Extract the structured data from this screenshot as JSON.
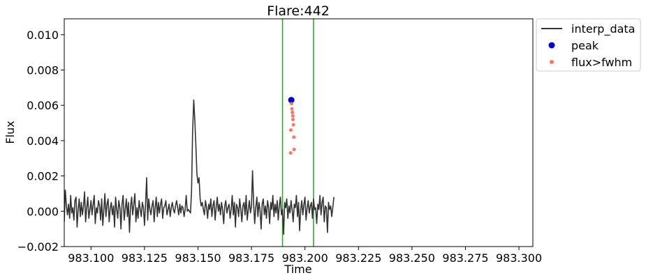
{
  "chart_data": {
    "type": "line",
    "title": "Flare:442",
    "xlabel": "Time",
    "ylabel": "Flux",
    "xlim": [
      983.0875,
      983.3065
    ],
    "ylim": [
      -0.002,
      0.0109
    ],
    "x_ticks": [
      983.1,
      983.125,
      983.15,
      983.175,
      983.2,
      983.225,
      983.25,
      983.275,
      983.3
    ],
    "x_tick_labels": [
      "983.100",
      "983.125",
      "983.150",
      "983.175",
      "983.200",
      "983.225",
      "983.250",
      "983.275",
      "983.300"
    ],
    "y_ticks": [
      -0.002,
      0.0,
      0.002,
      0.004,
      0.006,
      0.008,
      0.01
    ],
    "y_tick_labels": [
      "−0.002",
      "0.000",
      "0.002",
      "0.004",
      "0.006",
      "0.008",
      "0.010"
    ],
    "grid": false,
    "legend_position": "outside-top-right",
    "vlines": {
      "x": [
        983.1895,
        983.204
      ],
      "color": "#2ca02c"
    },
    "series": [
      {
        "name": "interp_data",
        "kind": "line",
        "color": "#333333",
        "x_start": 983.0875,
        "x_step": 0.0005,
        "values": [
          -0.0006,
          0.0012,
          0.0003,
          -0.0002,
          0.0004,
          -0.0004,
          0.0009,
          -0.0001,
          0.0002,
          -0.0005,
          0.0006,
          0.0008,
          -0.0009,
          0.0001,
          0.0007,
          -0.0003,
          0.0005,
          -0.0002,
          0.0003,
          0.0011,
          -0.0006,
          0.0002,
          0.0008,
          -0.0004,
          0.0001,
          0.0006,
          -0.0002,
          0.0004,
          0.0009,
          -0.0007,
          0.0002,
          -0.0001,
          0.0006,
          0.0003,
          -0.0005,
          0.0007,
          -0.0008,
          0.0001,
          0.001,
          -0.0003,
          0.0004,
          0.0007,
          -0.0006,
          0.0002,
          0.0005,
          -0.0002,
          0.0003,
          -0.0009,
          0.0008,
          0.0001,
          -0.0004,
          0.0006,
          0.0002,
          -0.001,
          0.0004,
          0.0009,
          -0.0005,
          0.0001,
          0.0007,
          -0.0003,
          0.0005,
          -0.0012,
          0.0003,
          0.0008,
          -0.0002,
          0.0004,
          0.001,
          -0.0006,
          0.0002,
          -0.0004,
          0.0006,
          0.0001,
          -0.0003,
          0.0005,
          0.0002,
          -0.0008,
          0.0004,
          0.0019,
          -0.0005,
          0.0007,
          0.0001,
          -0.0002,
          0.0003,
          0.0006,
          -0.0006,
          0.0002,
          0.0008,
          -0.0003,
          0.0005,
          -0.0001,
          0.0004,
          0.0007,
          -0.0004,
          0.0002,
          0.0003,
          0.0006,
          -0.0002,
          0.0001,
          0.0004,
          -0.0003,
          0.0002,
          0.0005,
          0.0001,
          -0.0001,
          0.0003,
          0.0006,
          0.0002,
          -0.0002,
          0.0004,
          -0.0001,
          0.0003,
          0.0002,
          -0.0003,
          0.0001,
          0.0009,
          0.0,
          0.0001,
          0.0,
          -0.0001,
          0.0012,
          0.0045,
          0.0063,
          0.0052,
          0.0038,
          0.0021,
          0.0016,
          0.0019,
          0.0007,
          0.0003,
          0.0005,
          0.0001,
          -0.0002,
          0.0006,
          0.0002,
          -0.0004,
          0.0004,
          0.0001,
          0.0007,
          -0.0003,
          0.0003,
          0.0006,
          -0.0005,
          0.0002,
          0.0008,
          0.0,
          0.0004,
          -0.0002,
          0.0005,
          0.0001,
          -0.0007,
          0.0003,
          0.0006,
          -0.0001,
          0.0002,
          0.0004,
          -0.0004,
          0.0001,
          0.0009,
          -0.0002,
          0.0005,
          -0.0009,
          0.0004,
          0.0002,
          -0.0003,
          0.0007,
          0.0001,
          -0.0006,
          0.0003,
          0.0005,
          -0.0002,
          0.0009,
          -0.0005,
          0.0001,
          0.0006,
          -0.0001,
          0.0003,
          0.0023,
          0.0004,
          -0.0007,
          0.0002,
          0.0008,
          -0.0003,
          0.0005,
          0.0001,
          -0.001,
          0.0004,
          0.0007,
          -0.0002,
          0.0003,
          -0.0004,
          0.0006,
          0.0002,
          -0.0007,
          0.0005,
          0.0001,
          0.0009,
          -0.0003,
          0.0004,
          -0.0001,
          0.0006,
          -0.0005,
          0.0003,
          0.0008,
          -0.0002,
          0.0001,
          -0.0013,
          0.0005,
          0.0002,
          0.0007,
          -0.0004,
          0.0003,
          -0.0001,
          0.0006,
          0.0001,
          -0.0006,
          0.0004,
          0.0002,
          0.0009,
          -0.0003,
          0.0005,
          -0.0011,
          0.0001,
          0.0006,
          -0.0002,
          0.0004,
          0.0008,
          -0.0005,
          0.0002,
          0.0006,
          -0.0001,
          0.0003,
          0.0005,
          -0.0004,
          0.0007,
          0.0001,
          0.0002,
          -0.0007,
          0.0004,
          0.0001,
          0.0009,
          -0.0002,
          0.0005,
          0.0008,
          -0.0006,
          0.0003,
          0.0002,
          -0.0012,
          0.0005,
          0.0001,
          0.0003,
          -0.0003,
          0.0002,
          0.0008
        ]
      },
      {
        "name": "peak",
        "kind": "scatter",
        "color": "#0000cc",
        "x": [
          983.1936
        ],
        "y": [
          0.0063
        ]
      },
      {
        "name": "flux>fwhm",
        "kind": "scatter",
        "color": "#f06050",
        "x": [
          983.1933,
          983.1934,
          983.1937,
          983.1939,
          983.1941,
          983.1943,
          983.1944,
          983.1946,
          983.1948,
          983.1949
        ],
        "y": [
          0.0033,
          0.0046,
          0.0061,
          0.0058,
          0.0056,
          0.0054,
          0.0052,
          0.0049,
          0.0042,
          0.0035
        ]
      }
    ]
  }
}
